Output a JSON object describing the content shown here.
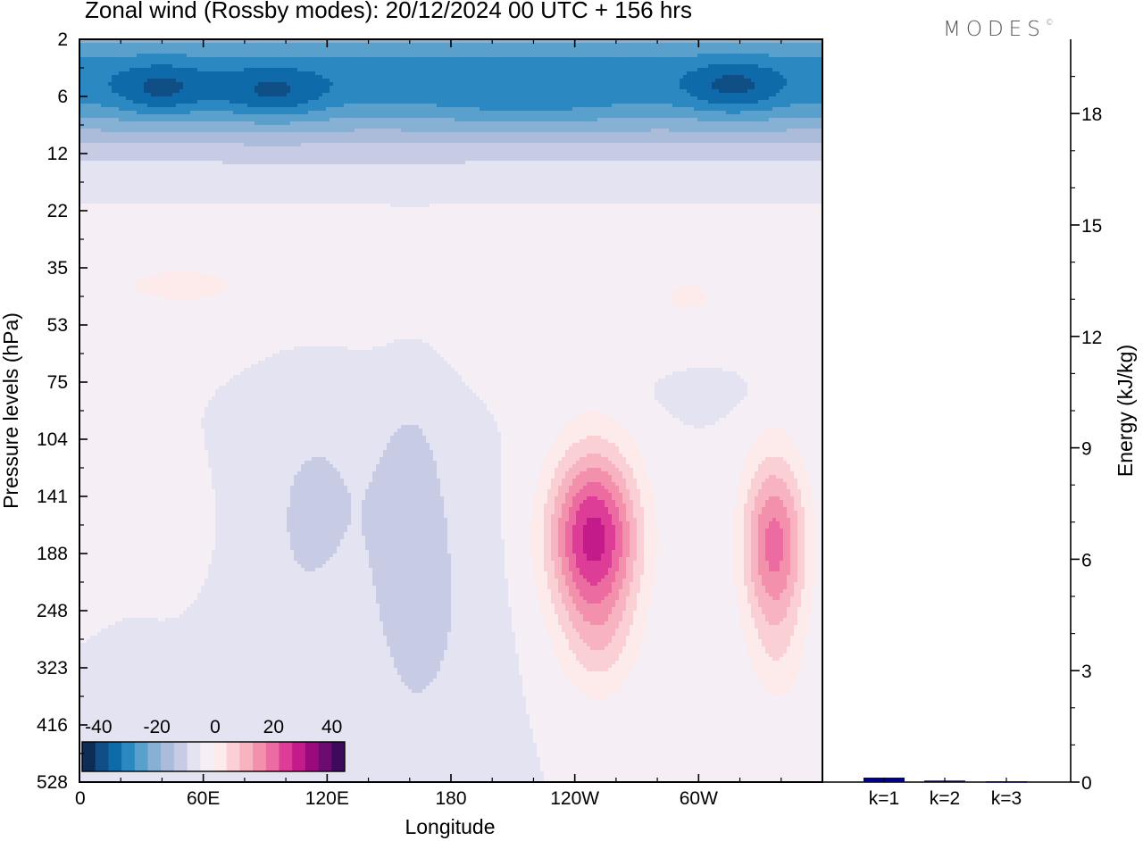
{
  "header": {
    "title": "Zonal wind (Rossby modes):  20/12/2024  00 UTC  + 156 hrs",
    "brand": "MODES",
    "brand_mark": "©"
  },
  "chart_data": [
    {
      "type": "heatmap",
      "variable": "Zonal wind (Rossby modes)",
      "xlabel": "Longitude",
      "ylabel": "Pressure levels (hPa)",
      "x_ticks": [
        "0",
        "60E",
        "120E",
        "180",
        "120W",
        "60W"
      ],
      "x_tick_degrees": [
        0,
        60,
        120,
        180,
        240,
        300
      ],
      "xlim": [
        0,
        360
      ],
      "y_levels_hPa": [
        "2",
        "6",
        "12",
        "22",
        "35",
        "53",
        "75",
        "104",
        "141",
        "188",
        "248",
        "323",
        "416",
        "528"
      ],
      "colorbar": {
        "tick_labels": [
          "-40",
          "-20",
          "0",
          "20",
          "40"
        ],
        "tick_values": [
          -40,
          -20,
          0,
          20,
          40
        ],
        "range": [
          -45,
          45
        ],
        "bin_width": 5,
        "colors": [
          "#0d2d56",
          "#0f4f86",
          "#0f6aa9",
          "#2c88c0",
          "#5aa0cc",
          "#86b1d4",
          "#abbcda",
          "#c7cbe3",
          "#e3e3f1",
          "#f5eef4",
          "#fdeaea",
          "#fbd0d4",
          "#f7b3c0",
          "#f391ac",
          "#ec6ba0",
          "#dd3c97",
          "#c41b8a",
          "#9a0a7c",
          "#6c0c71",
          "#3f0a5c"
        ]
      },
      "features": [
        {
          "description": "easterly jet core",
          "lon_center": 30,
          "level_hPa": "6",
          "value_min": -35
        },
        {
          "description": "easterly jet core",
          "lon_center": 85,
          "level_hPa": "6",
          "value_min": -35
        },
        {
          "description": "easterly jet core",
          "lon_center": 320,
          "level_hPa": "6",
          "value_min": -35
        },
        {
          "description": "westerly maximum",
          "lon_center": 248,
          "level_hPa": "188",
          "value_max": 35
        },
        {
          "description": "westerly maximum",
          "lon_center": 335,
          "level_hPa": "188",
          "value_max": 25
        },
        {
          "description": "westerly (light)",
          "lon_center": 40,
          "level_hPa": "35",
          "value_max": 5
        },
        {
          "description": "westerly (light)",
          "lon_center": 310,
          "level_hPa": "35",
          "value_max": 5
        },
        {
          "description": "easterly (light)",
          "lon_center": 85,
          "level_hPa": "141",
          "value_min": -10
        }
      ]
    },
    {
      "type": "bar",
      "categories": [
        "k=1",
        "k=2",
        "k=3"
      ],
      "values": [
        0.12,
        0.04,
        0.02
      ],
      "ylabel": "Energy (kJ/kg)",
      "ylim": [
        0,
        20
      ],
      "y_ticks": [
        "0",
        "3",
        "6",
        "9",
        "12",
        "15",
        "18"
      ],
      "colors": [
        "#00008b",
        "#000044",
        "#000044"
      ]
    }
  ]
}
